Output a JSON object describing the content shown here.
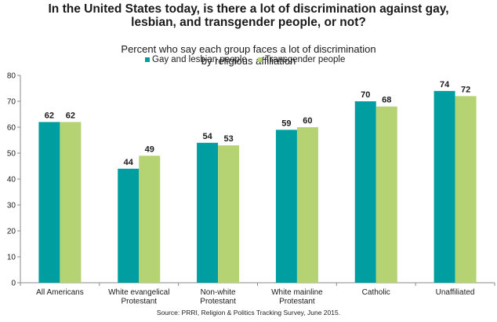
{
  "title_lines": [
    "In the United States today, is there a lot of discrimination against gay,",
    "lesbian, and transgender people, or not?"
  ],
  "subtitle_lines": [
    "Percent who say each group faces a lot of discrimination",
    "by religious affiliation"
  ],
  "source": "Source: PRRI, Religion & Politics Tracking Survey, June 2015.",
  "colors": {
    "series_1": "#009ea0",
    "series_2": "#b5d372",
    "axis": "#8a8a8a",
    "text": "#1a1a1a"
  },
  "chart_data": {
    "type": "bar",
    "categories": [
      [
        "All Americans"
      ],
      [
        "White evangelical",
        "Protestant"
      ],
      [
        "Non-white",
        "Protestant"
      ],
      [
        "White mainline",
        "Protestant"
      ],
      [
        "Catholic"
      ],
      [
        "Unaffiliated"
      ]
    ],
    "series": [
      {
        "name": "Gay and lesbian people",
        "values": [
          62,
          44,
          54,
          59,
          70,
          74
        ]
      },
      {
        "name": "Transgender people",
        "values": [
          62,
          49,
          53,
          60,
          68,
          72
        ]
      }
    ],
    "ylim": [
      0,
      80
    ],
    "yticks": [
      0,
      10,
      20,
      30,
      40,
      50,
      60,
      70,
      80
    ],
    "xlabel": "",
    "ylabel": "",
    "grid": false,
    "legend": "top",
    "data_labels": true
  }
}
